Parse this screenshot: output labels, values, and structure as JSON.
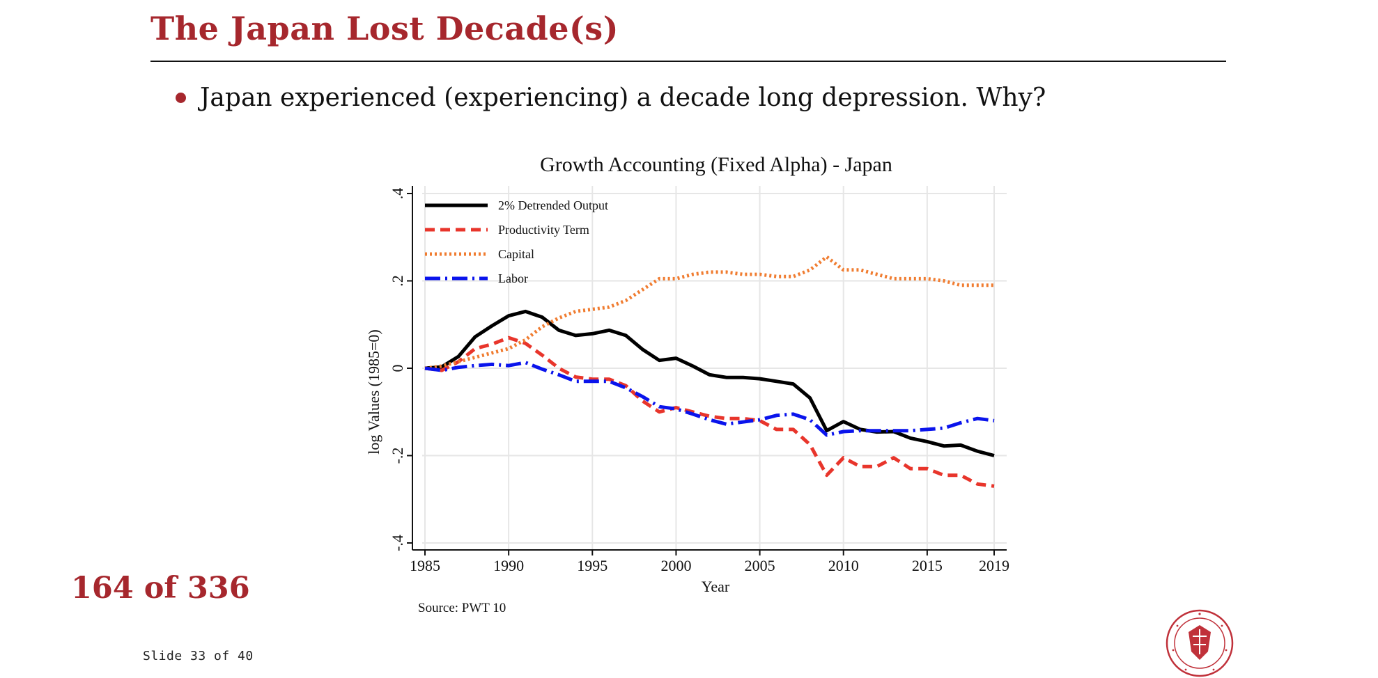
{
  "slide": {
    "title": "The Japan Lost Decade(s)",
    "bullet": "Japan experienced (experiencing) a decade long depression. Why?",
    "page_counter": "164 of 336",
    "footer": "Slide 33 of 40",
    "accent_color": "#a6272d",
    "seal_icon": "university-seal-icon",
    "seal_text": "CARNEGIE MELLON UNIVERSITY · PITTSBURGH PENNSYLVANIA 1900"
  },
  "chart_data": {
    "type": "line",
    "title": "Growth Accounting (Fixed Alpha) - Japan",
    "xlabel": "Year",
    "ylabel": "log Values (1985=0)",
    "source": "Source: PWT 10",
    "xlim": [
      1985,
      2019
    ],
    "ylim": [
      -0.4,
      0.4
    ],
    "xticks": [
      1985,
      1990,
      1995,
      2000,
      2005,
      2010,
      2015,
      2019
    ],
    "xtick_labels": [
      "1985",
      "1990",
      "1995",
      "2000",
      "2005",
      "2010",
      "2015",
      "2019"
    ],
    "yticks": [
      -0.4,
      -0.2,
      0,
      0.2,
      0.4
    ],
    "ytick_labels": [
      "-.4",
      "-.2",
      "0",
      ".2",
      ".4"
    ],
    "grid": true,
    "legend_position": "top-left",
    "x": [
      1985,
      1986,
      1987,
      1988,
      1989,
      1990,
      1991,
      1992,
      1993,
      1994,
      1995,
      1996,
      1997,
      1998,
      1999,
      2000,
      2001,
      2002,
      2003,
      2004,
      2005,
      2006,
      2007,
      2008,
      2009,
      2010,
      2011,
      2012,
      2013,
      2014,
      2015,
      2016,
      2017,
      2018,
      2019
    ],
    "series": [
      {
        "name": "2% Detrended Output",
        "color": "#000000",
        "dash": "solid",
        "values": [
          0,
          0.003,
          0.027,
          0.072,
          0.097,
          0.12,
          0.13,
          0.117,
          0.087,
          0.075,
          0.079,
          0.087,
          0.075,
          0.043,
          0.018,
          0.023,
          0.005,
          -0.015,
          -0.021,
          -0.021,
          -0.024,
          -0.03,
          -0.036,
          -0.068,
          -0.143,
          -0.122,
          -0.14,
          -0.146,
          -0.145,
          -0.16,
          -0.168,
          -0.178,
          -0.176,
          -0.19,
          -0.2
        ]
      },
      {
        "name": "Productivity Term",
        "color": "#e8352b",
        "dash": "dashed",
        "values": [
          0,
          -0.005,
          0.015,
          0.045,
          0.055,
          0.07,
          0.057,
          0.03,
          0.0,
          -0.02,
          -0.025,
          -0.025,
          -0.04,
          -0.075,
          -0.1,
          -0.09,
          -0.1,
          -0.11,
          -0.115,
          -0.115,
          -0.12,
          -0.14,
          -0.14,
          -0.175,
          -0.245,
          -0.205,
          -0.225,
          -0.225,
          -0.205,
          -0.23,
          -0.23,
          -0.245,
          -0.245,
          -0.265,
          -0.27
        ]
      },
      {
        "name": "Capital",
        "color": "#f07c30",
        "dash": "dotted",
        "values": [
          0,
          0.005,
          0.015,
          0.025,
          0.035,
          0.045,
          0.065,
          0.095,
          0.115,
          0.13,
          0.135,
          0.14,
          0.155,
          0.18,
          0.205,
          0.205,
          0.215,
          0.22,
          0.22,
          0.215,
          0.215,
          0.21,
          0.21,
          0.225,
          0.255,
          0.225,
          0.225,
          0.215,
          0.205,
          0.205,
          0.205,
          0.2,
          0.19,
          0.19,
          0.19
        ]
      },
      {
        "name": "Labor",
        "color": "#0a14ec",
        "dash": "dashdot",
        "values": [
          0,
          -0.005,
          0.002,
          0.006,
          0.009,
          0.006,
          0.013,
          -0.002,
          -0.015,
          -0.03,
          -0.03,
          -0.03,
          -0.045,
          -0.065,
          -0.088,
          -0.093,
          -0.105,
          -0.118,
          -0.128,
          -0.123,
          -0.118,
          -0.108,
          -0.105,
          -0.118,
          -0.153,
          -0.145,
          -0.143,
          -0.143,
          -0.143,
          -0.143,
          -0.14,
          -0.137,
          -0.125,
          -0.115,
          -0.12
        ]
      }
    ]
  }
}
